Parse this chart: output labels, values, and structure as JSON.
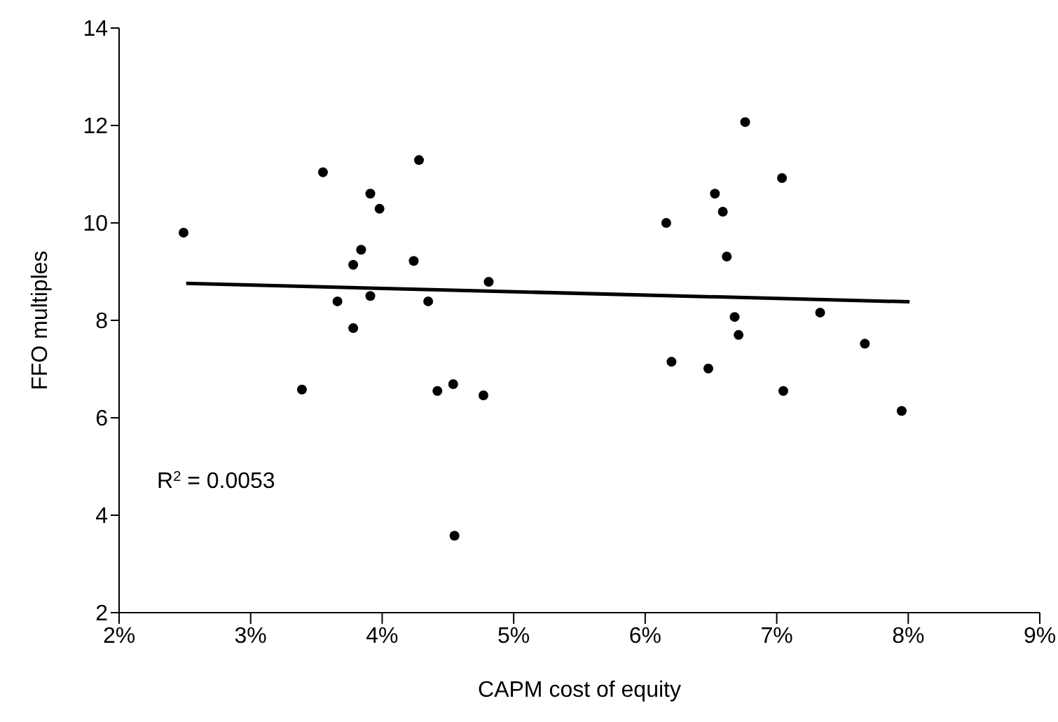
{
  "chart_data": {
    "type": "scatter",
    "xlabel": "CAPM cost of equity",
    "ylabel": "FFO multiples",
    "annotations": [
      "R$^{2}$ = 0.0053"
    ],
    "series": [
      {
        "color": "#000000",
        "marker": "circle",
        "x": [
          2.49,
          3.55,
          4.28,
          3.91,
          3.98,
          3.84,
          3.78,
          4.24,
          4.81,
          3.66,
          3.91,
          4.35,
          3.78,
          3.39,
          4.42,
          4.54,
          4.77,
          4.55,
          6.76,
          7.04,
          6.53,
          6.59,
          6.16,
          6.62,
          6.68,
          7.33,
          6.71,
          7.67,
          6.2,
          6.48,
          7.05,
          7.95
        ],
        "values": [
          9.8,
          11.04,
          11.29,
          10.6,
          10.29,
          9.45,
          9.14,
          9.22,
          8.79,
          8.39,
          8.5,
          8.39,
          7.84,
          6.58,
          6.55,
          6.69,
          6.46,
          3.58,
          12.07,
          10.92,
          10.6,
          10.23,
          10.0,
          9.31,
          8.07,
          8.16,
          7.7,
          7.52,
          7.15,
          7.01,
          6.55,
          6.14
        ]
      },
      {
        "type": "line",
        "color": "#000000",
        "x": [
          2.51,
          8.01
        ],
        "values": [
          8.76,
          8.38
        ]
      }
    ],
    "grid": false,
    "legend": false,
    "xlim": [
      2,
      9
    ],
    "xticks": [
      {
        "value": 2,
        "label": "2%"
      },
      {
        "value": 3,
        "label": "3%"
      },
      {
        "value": 4,
        "label": "4%"
      },
      {
        "value": 5,
        "label": "5%"
      },
      {
        "value": 6,
        "label": "6%"
      },
      {
        "value": 7,
        "label": "7%"
      },
      {
        "value": 8,
        "label": "8%"
      },
      {
        "value": 9,
        "label": "9%"
      }
    ],
    "ylim": [
      2,
      14
    ],
    "yticks": [
      2,
      4,
      6,
      8,
      10,
      12,
      14
    ]
  }
}
